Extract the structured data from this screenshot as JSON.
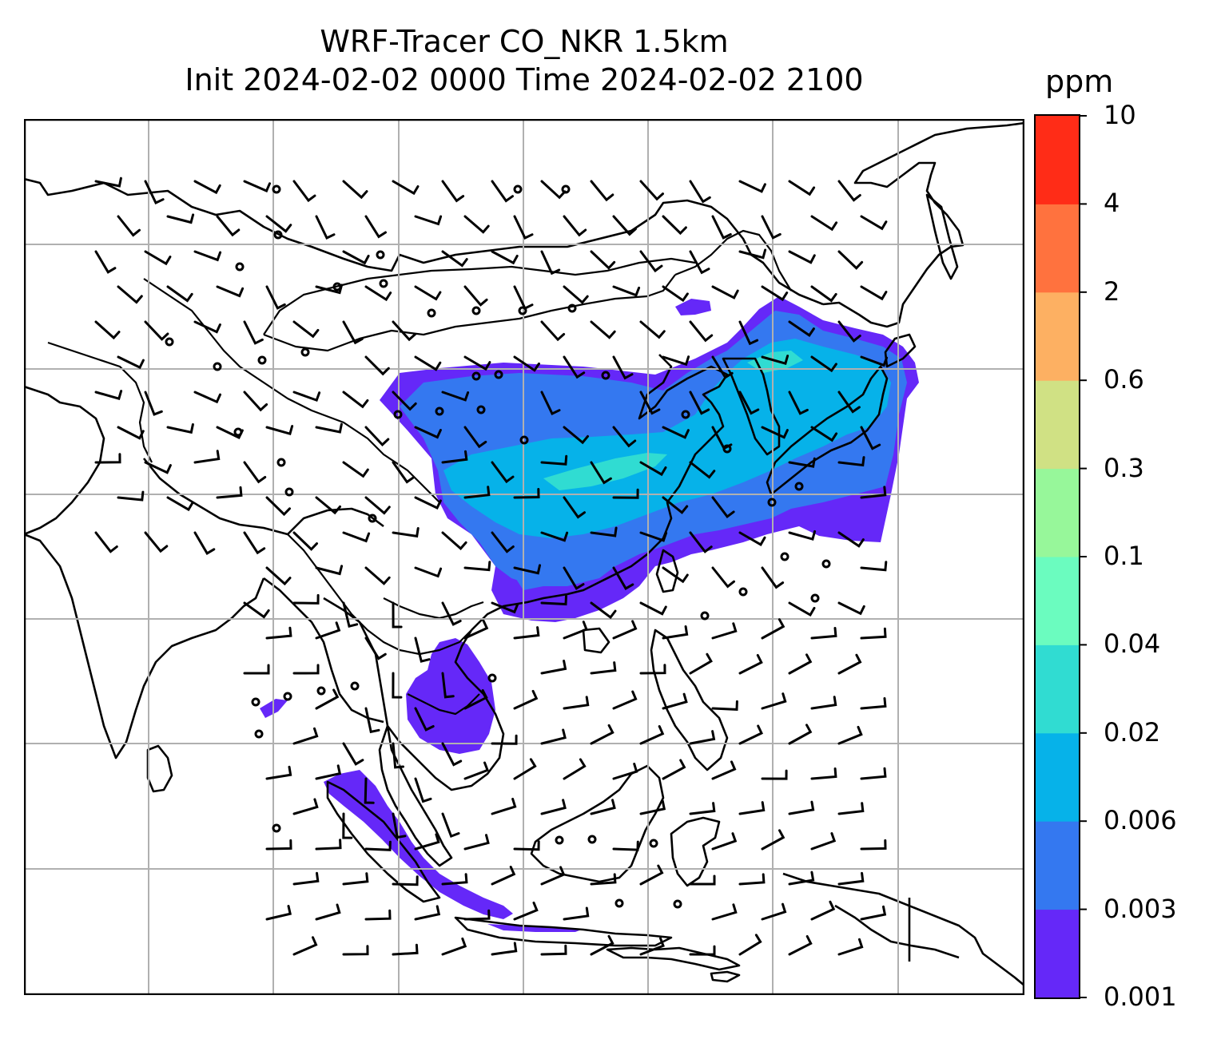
{
  "title": {
    "line1": "WRF-Tracer CO_NKR 1.5km",
    "line2": "Init 2024-02-02 0000 Time 2024-02-02 2100"
  },
  "colorbar": {
    "unit": "ppm",
    "ticks": [
      "0.001",
      "0.003",
      "0.006",
      "0.02",
      "0.04",
      "0.1",
      "0.3",
      "0.6",
      "2",
      "4",
      "10"
    ],
    "colors": [
      "#6528f8",
      "#3478f0",
      "#06b2e9",
      "#30dcd2",
      "#6bfcbf",
      "#97f79a",
      "#d0e184",
      "#fdb062",
      "#ff723e",
      "#ff2c17"
    ]
  },
  "map": {
    "field": "CO_NKR tracer concentration at 1.5km",
    "overlays": [
      "coastlines",
      "country borders",
      "lat/lon gridlines",
      "wind barbs"
    ],
    "gridlines": "on"
  }
}
